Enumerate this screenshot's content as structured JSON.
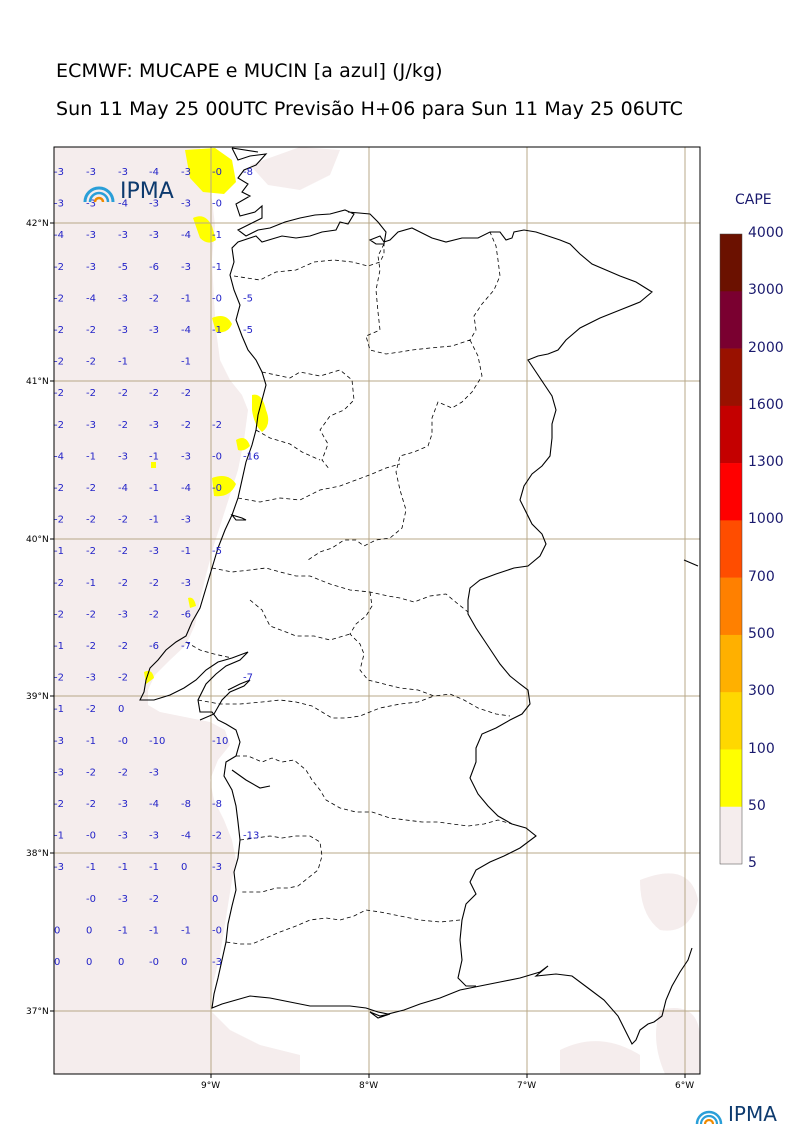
{
  "title_line1": "ECMWF: MUCAPE e MUCIN [a azul] (J/kg)",
  "title_line2": "Sun 11 May 25 00UTC Previsão H+06 para Sun 11 May 25 06UTC",
  "logo_text": "IPMA",
  "colorbar": {
    "title": "CAPE",
    "levels": [
      "4000",
      "3000",
      "2000",
      "1600",
      "1300",
      "1000",
      "700",
      "500",
      "300",
      "100",
      "50",
      "5"
    ],
    "colors": [
      "#6b1100",
      "#7a0030",
      "#991100",
      "#c40000",
      "#ff0000",
      "#ff4d00",
      "#ff8000",
      "#ffb000",
      "#ffd800",
      "#ffff00",
      "#f5eded"
    ]
  },
  "axes": {
    "lat_labels": [
      "42°N",
      "41°N",
      "40°N",
      "39°N",
      "38°N",
      "37°N"
    ],
    "lon_labels": [
      "9°W",
      "8°W",
      "7°W",
      "6°W"
    ]
  },
  "cin_columns": [
    [
      "-3",
      "-3",
      "-4",
      "-2",
      "-2",
      "-2",
      "-2",
      "-2",
      "-2",
      "-4",
      "-2",
      "-2",
      "-1",
      "-2",
      "-2",
      "-1",
      "-2",
      "-1",
      "-3",
      "-3",
      "-2",
      "-1",
      "-3",
      "",
      "0",
      "0"
    ],
    [
      "-3",
      "-3",
      "-3",
      "-3",
      "-4",
      "-2",
      "-2",
      "-2",
      "-3",
      "-1",
      "-2",
      "-2",
      "-2",
      "-1",
      "-2",
      "-2",
      "-3",
      "-2",
      "-1",
      "-2",
      "-2",
      "-0",
      "-1",
      "-0",
      "0",
      "0"
    ],
    [
      "-3",
      "-4",
      "-3",
      "-5",
      "-3",
      "-3",
      "-1",
      "-2",
      "-2",
      "-3",
      "-4",
      "-2",
      "-2",
      "-2",
      "-3",
      "-2",
      "-2",
      "0",
      "-0",
      "-2",
      "-3",
      "-3",
      "-1",
      "-3",
      "-1",
      "0"
    ],
    [
      "-4",
      "-3",
      "-3",
      "-6",
      "-2",
      "-3",
      "",
      "-2",
      "-3",
      "-1",
      "-1",
      "-1",
      "-3",
      "-2",
      "-2",
      "-6",
      "",
      "",
      "-10",
      "-3",
      "-4",
      "-3",
      "-1",
      "-2",
      "-1",
      "-0"
    ],
    [
      "-3",
      "-3",
      "-4",
      "-3",
      "-1",
      "-4",
      "-1",
      "-2",
      "-2",
      "-3",
      "-4",
      "-3",
      "-1",
      "-3",
      "-6",
      "-7",
      "",
      "",
      "",
      "",
      "-8",
      "-4",
      "0",
      "",
      "-1",
      "0"
    ],
    [
      "-0",
      "-0",
      "-1",
      "-1",
      "-0",
      "-1",
      "",
      "",
      "-2",
      "-0",
      "-0",
      "",
      "-5",
      "",
      "",
      "",
      "",
      "",
      "-10",
      "",
      "-8",
      "-2",
      "-3",
      "0",
      "-0",
      "-3"
    ],
    [
      "-8",
      "",
      "",
      "",
      "-5",
      "-5",
      "",
      "",
      "",
      "-16",
      "",
      "",
      "",
      "",
      "",
      "",
      "-7",
      "",
      "",
      "",
      "",
      "-13",
      "",
      "",
      "",
      ""
    ]
  ]
}
